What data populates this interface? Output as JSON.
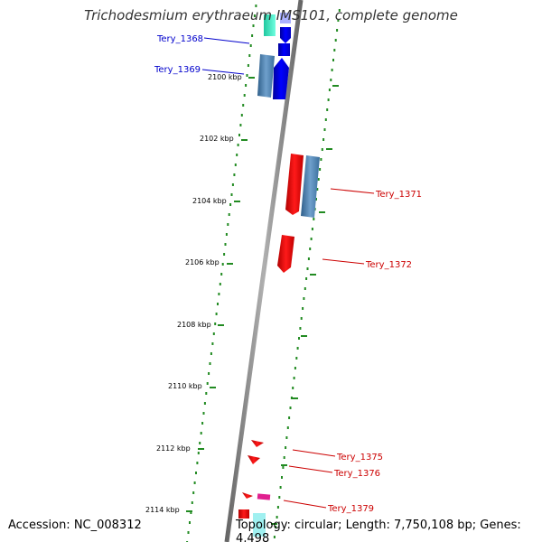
{
  "title": "Trichodesmium erythraeum IMS101, complete genome",
  "accession": "Accession: NC_008312",
  "topology": "Topology: circular; Length: 7,750,108 bp; Genes: 4,498",
  "ticks": [
    "2100 kbp",
    "2102 kbp",
    "2104 kbp",
    "2106 kbp",
    "2108 kbp",
    "2110 kbp",
    "2112 kbp",
    "2114 kbp"
  ],
  "genes": [
    {
      "label": "Tery_1368",
      "strand": "left",
      "color": "#0000cc"
    },
    {
      "label": "Tery_1369",
      "strand": "left",
      "color": "#0000cc"
    },
    {
      "label": "Tery_1371",
      "strand": "right",
      "color": "#cc0000"
    },
    {
      "label": "Tery_1372",
      "strand": "right",
      "color": "#cc0000"
    },
    {
      "label": "Tery_1375",
      "strand": "right",
      "color": "#cc0000"
    },
    {
      "label": "Tery_1376",
      "strand": "right",
      "color": "#cc0000"
    },
    {
      "label": "Tery_1379",
      "strand": "right",
      "color": "#cc0000"
    }
  ],
  "colors": {
    "backbone": "#888888",
    "dots": "#228b22",
    "forward_gene": "#0000ff",
    "reverse_gene": "#ff0000",
    "steelblue_feature": "#4682b4",
    "cyan_feature": "#40e0d0",
    "magenta_feature": "#e0208f"
  }
}
